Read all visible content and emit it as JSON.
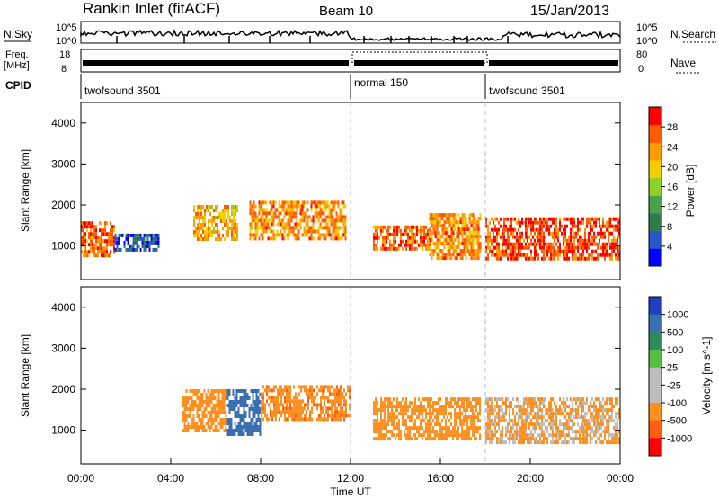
{
  "header": {
    "station": "Rankin Inlet (fitACF)",
    "beam": "Beam 10",
    "date": "15/Jan/2013"
  },
  "strip_labels": {
    "nsky": "N.Sky",
    "nsky_ticks": [
      "10^5",
      "10^0"
    ],
    "nsearch": "N.Search",
    "nsearch_ticks": [
      "10^5",
      "10^0"
    ],
    "freq": "Freq.",
    "freq_unit": "[MHz]",
    "freq_ticks": [
      "18",
      "8"
    ],
    "nave": "Nave",
    "nave_ticks": [
      "80",
      "0"
    ],
    "cpid": "CPID"
  },
  "cpid_segments": [
    {
      "label": "twofsound 3501",
      "start_hour": 0,
      "end_hour": 12
    },
    {
      "label": "normal 150",
      "start_hour": 12,
      "end_hour": 18
    },
    {
      "label": "twofsound 3501",
      "start_hour": 18,
      "end_hour": 24
    }
  ],
  "colors": {
    "power_scale": [
      "#0000ff",
      "#2a55c8",
      "#2e7d4f",
      "#4aa34a",
      "#8fd12a",
      "#f0d000",
      "#ff9a00",
      "#ff5a00",
      "#ff0000"
    ],
    "velocity_scale": [
      "#2040c0",
      "#3a6fb0",
      "#2e8b57",
      "#55c040",
      "#bdbdbd",
      "#bdbdbd",
      "#ff9020",
      "#ff6010",
      "#ff0000"
    ]
  },
  "chart_data": [
    {
      "type": "heatmap",
      "title": "Power",
      "xlabel": "Time UT",
      "ylabel": "Slant Range [km]",
      "xlim": [
        "00:00",
        "24:00"
      ],
      "ylim": [
        180,
        4500
      ],
      "x_ticks": [
        "00:00",
        "04:00",
        "08:00",
        "12:00",
        "16:00",
        "20:00",
        "00:00"
      ],
      "y_ticks": [
        1000,
        2000,
        3000,
        4000
      ],
      "colorbar": {
        "label": "Power [dB]",
        "range": [
          0,
          32
        ],
        "ticks": [
          4,
          8,
          12,
          16,
          20,
          24,
          28
        ]
      },
      "regions": [
        {
          "t_start": 0.0,
          "t_end": 1.5,
          "range_low": 800,
          "range_high": 1600,
          "value": 26
        },
        {
          "t_start": 1.5,
          "t_end": 3.5,
          "range_low": 900,
          "range_high": 1300,
          "value": 6
        },
        {
          "t_start": 5.0,
          "t_end": 7.0,
          "range_low": 1200,
          "range_high": 2000,
          "value": 22
        },
        {
          "t_start": 7.5,
          "t_end": 11.8,
          "range_low": 1200,
          "range_high": 2100,
          "value": 24
        },
        {
          "t_start": 13.0,
          "t_end": 15.5,
          "range_low": 900,
          "range_high": 1500,
          "value": 26
        },
        {
          "t_start": 15.5,
          "t_end": 17.8,
          "range_low": 700,
          "range_high": 1800,
          "value": 24
        },
        {
          "t_start": 18.0,
          "t_end": 24.0,
          "range_low": 700,
          "range_high": 1700,
          "value": 28
        }
      ]
    },
    {
      "type": "heatmap",
      "title": "Velocity",
      "xlabel": "Time UT",
      "ylabel": "Slant Range [km]",
      "xlim": [
        "00:00",
        "24:00"
      ],
      "ylim": [
        180,
        4500
      ],
      "x_ticks": [
        "00:00",
        "04:00",
        "08:00",
        "12:00",
        "16:00",
        "20:00",
        "00:00"
      ],
      "y_ticks": [
        1000,
        2000,
        3000,
        4000
      ],
      "colorbar": {
        "label": "Velocity [m s^-1]",
        "ticks": [
          "1000",
          "500",
          "100",
          "25",
          "-25",
          "-100",
          "-500",
          "-1000"
        ]
      },
      "regions": [
        {
          "t_start": 4.5,
          "t_end": 6.5,
          "range_low": 1000,
          "range_high": 2000,
          "value": -300
        },
        {
          "t_start": 6.5,
          "t_end": 8.0,
          "range_low": 900,
          "range_high": 2000,
          "value": 700
        },
        {
          "t_start": 8.0,
          "t_end": 12.0,
          "range_low": 1300,
          "range_high": 2100,
          "value": -400
        },
        {
          "t_start": 13.0,
          "t_end": 17.8,
          "range_low": 800,
          "range_high": 1800,
          "value": -300
        },
        {
          "t_start": 18.0,
          "t_end": 24.0,
          "range_low": 700,
          "range_high": 1800,
          "value": -150
        }
      ]
    }
  ]
}
